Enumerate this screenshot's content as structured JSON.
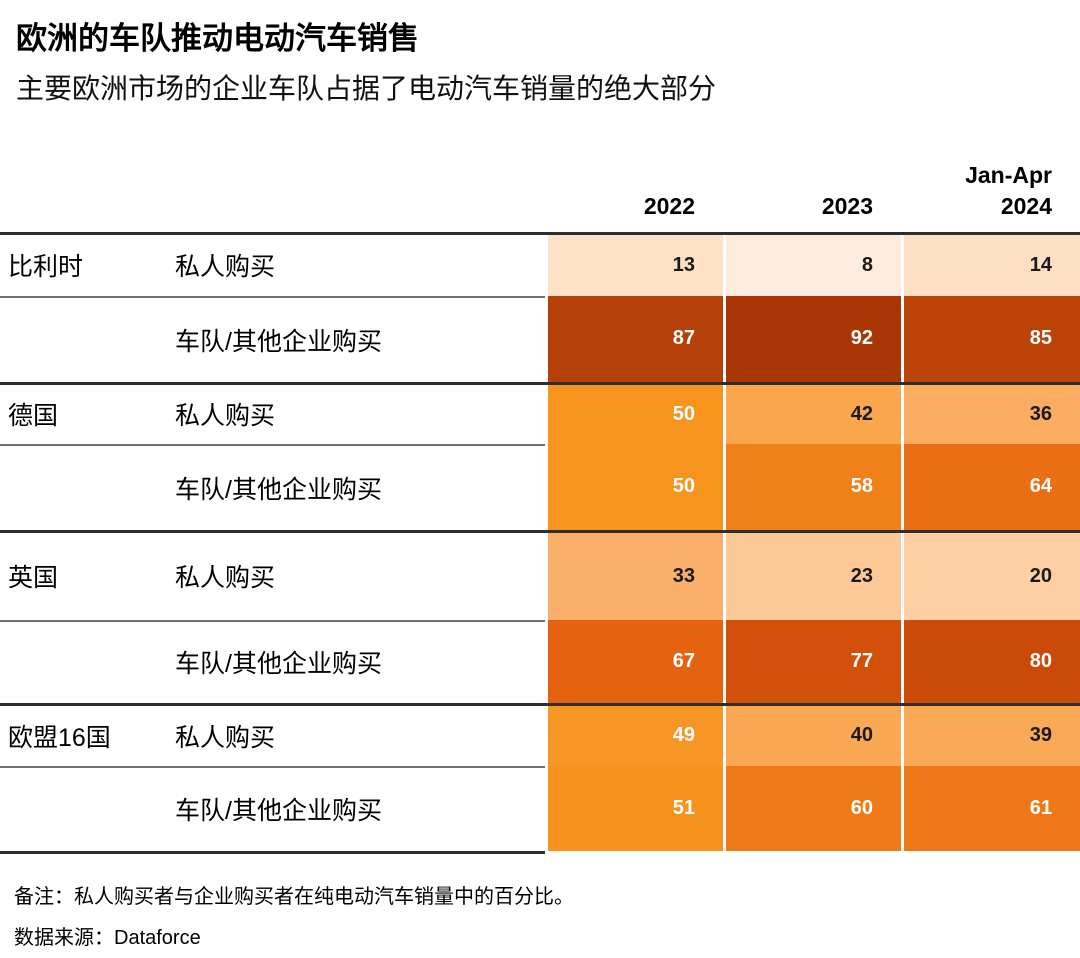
{
  "chart_data": {
    "type": "heatmap",
    "title": "欧洲的车队推动电动汽车销售",
    "subtitle": "主要欧洲市场的企业车队占据了电动汽车销量的绝大部分",
    "columns": [
      {
        "prefix": "",
        "label": "2022"
      },
      {
        "prefix": "",
        "label": "2023"
      },
      {
        "prefix": "Jan-Apr",
        "label": "2024"
      }
    ],
    "groups": [
      {
        "country": "比利时",
        "rows": [
          {
            "label": "私人购买",
            "values": [
              13,
              8,
              14
            ]
          },
          {
            "label": "车队/其他企业购买",
            "values": [
              87,
              92,
              85
            ]
          }
        ]
      },
      {
        "country": "德国",
        "rows": [
          {
            "label": "私人购买",
            "values": [
              50,
              42,
              36
            ]
          },
          {
            "label": "车队/其他企业购买",
            "values": [
              50,
              58,
              64
            ]
          }
        ]
      },
      {
        "country": "英国",
        "rows": [
          {
            "label": "私人购买",
            "values": [
              33,
              23,
              20
            ]
          },
          {
            "label": "车队/其他企业购买",
            "values": [
              67,
              77,
              80
            ]
          }
        ]
      },
      {
        "country": "欧盟16国",
        "rows": [
          {
            "label": "私人购买",
            "values": [
              49,
              40,
              39
            ]
          },
          {
            "label": "车队/其他企业购买",
            "values": [
              51,
              60,
              61
            ]
          }
        ]
      }
    ],
    "value_range": [
      0,
      100
    ],
    "colormap": [
      {
        "v": 0,
        "c": "#FEF4EA"
      },
      {
        "v": 8,
        "c": "#FDEBDD"
      },
      {
        "v": 13,
        "c": "#FDE2C8"
      },
      {
        "v": 20,
        "c": "#FDCFA2"
      },
      {
        "v": 23,
        "c": "#FDCA97"
      },
      {
        "v": 33,
        "c": "#FAB06A"
      },
      {
        "v": 36,
        "c": "#FAAC60"
      },
      {
        "v": 42,
        "c": "#FAA64C"
      },
      {
        "v": 50,
        "c": "#F7941E"
      },
      {
        "v": 58,
        "c": "#F08119"
      },
      {
        "v": 64,
        "c": "#EB6E14"
      },
      {
        "v": 67,
        "c": "#E56310"
      },
      {
        "v": 80,
        "c": "#CC4A07"
      },
      {
        "v": 87,
        "c": "#B64009"
      },
      {
        "v": 92,
        "c": "#A93705"
      },
      {
        "v": 100,
        "c": "#982E02"
      }
    ],
    "white_text_threshold": 45,
    "dark_text_color": "#1a1a1a",
    "light_text_color": "#ffffff",
    "note": "备注：私人购买者与企业购买者在纯电动汽车销量中的百分比。",
    "source": "数据来源：Dataforce"
  }
}
